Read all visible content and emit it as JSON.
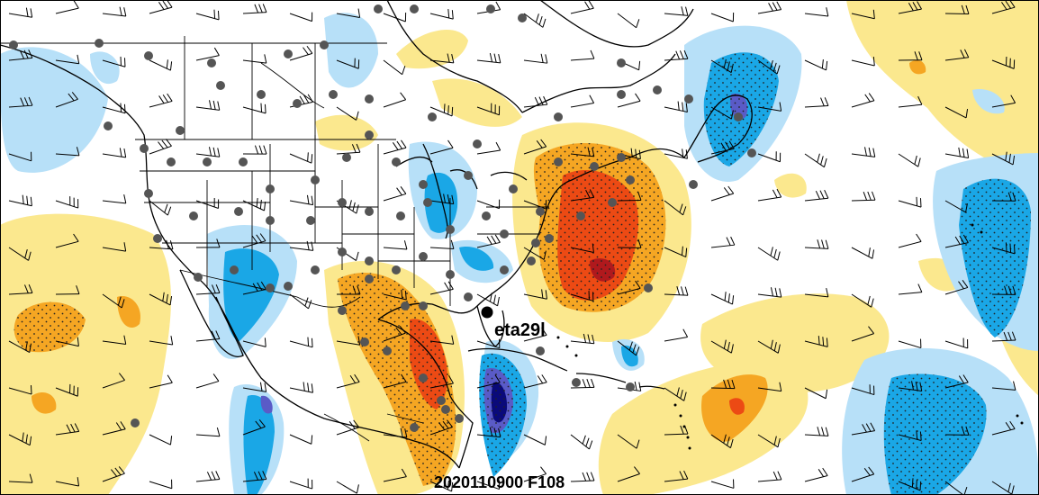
{
  "storm": {
    "label": "eta29l"
  },
  "footer": {
    "valid_time": "2020110900 F108"
  },
  "colors": {
    "light_yellow": "#fbe88e",
    "orange": "#f5a623",
    "red_orange": "#ec4a14",
    "dark_red": "#b0191d",
    "light_blue": "#b7e0f8",
    "blue": "#1aa7e6",
    "purple": "#5a5bc7",
    "navy": "#0a0a7a"
  }
}
